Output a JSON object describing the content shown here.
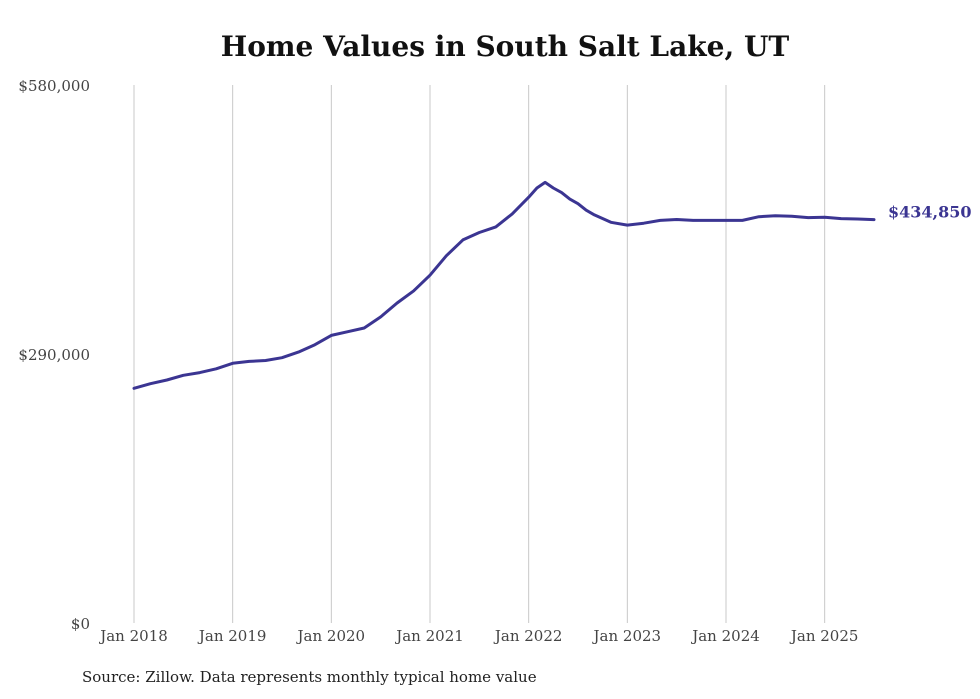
{
  "title": "Home Values in South Salt Lake, UT",
  "source_note": "Source: Zillow. Data represents monthly typical home value",
  "colors": {
    "line": "#3b3592",
    "grid": "#c8c8c8",
    "text": "#444444"
  },
  "chart_data": {
    "type": "line",
    "title": "Home Values in South Salt Lake, UT",
    "xlabel": "",
    "ylabel": "",
    "ylim": [
      0,
      580000
    ],
    "y_ticks": [
      {
        "value": 0,
        "label": "$0"
      },
      {
        "value": 290000,
        "label": "$290,000"
      },
      {
        "value": 580000,
        "label": "$580,000"
      }
    ],
    "x_ticks": [
      {
        "value": "2018-01",
        "label": "Jan 2018"
      },
      {
        "value": "2019-01",
        "label": "Jan 2019"
      },
      {
        "value": "2020-01",
        "label": "Jan 2020"
      },
      {
        "value": "2021-01",
        "label": "Jan 2021"
      },
      {
        "value": "2022-01",
        "label": "Jan 2022"
      },
      {
        "value": "2023-01",
        "label": "Jan 2023"
      },
      {
        "value": "2024-01",
        "label": "Jan 2024"
      },
      {
        "value": "2025-01",
        "label": "Jan 2025"
      }
    ],
    "grid": "vertical",
    "end_label": "$434,850",
    "series": [
      {
        "x": [
          "2018-01",
          "2018-03",
          "2018-05",
          "2018-07",
          "2018-09",
          "2018-11",
          "2019-01",
          "2019-03",
          "2019-05",
          "2019-07",
          "2019-09",
          "2019-11",
          "2020-01",
          "2020-03",
          "2020-05",
          "2020-07",
          "2020-09",
          "2020-11",
          "2021-01",
          "2021-03",
          "2021-05",
          "2021-07",
          "2021-09",
          "2021-11",
          "2022-01",
          "2022-02",
          "2022-03",
          "2022-04",
          "2022-05",
          "2022-06",
          "2022-07",
          "2022-08",
          "2022-09",
          "2022-11",
          "2023-01",
          "2023-03",
          "2023-05",
          "2023-07",
          "2023-09",
          "2023-11",
          "2024-01",
          "2024-03",
          "2024-05",
          "2024-07",
          "2024-09",
          "2024-11",
          "2025-01",
          "2025-03",
          "2025-05",
          "2025-07"
        ],
        "y": [
          253000,
          258000,
          262000,
          267000,
          270000,
          274000,
          280000,
          282000,
          283000,
          286000,
          292000,
          300000,
          310000,
          314000,
          318000,
          330000,
          345000,
          358000,
          375000,
          396000,
          413000,
          421000,
          427000,
          441000,
          459000,
          469000,
          475000,
          469000,
          464000,
          457000,
          452000,
          445000,
          440000,
          432000,
          429000,
          431000,
          434000,
          435000,
          434000,
          434000,
          434000,
          434000,
          438000,
          439000,
          438500,
          437000,
          437500,
          436000,
          435500,
          434850
        ]
      }
    ]
  }
}
